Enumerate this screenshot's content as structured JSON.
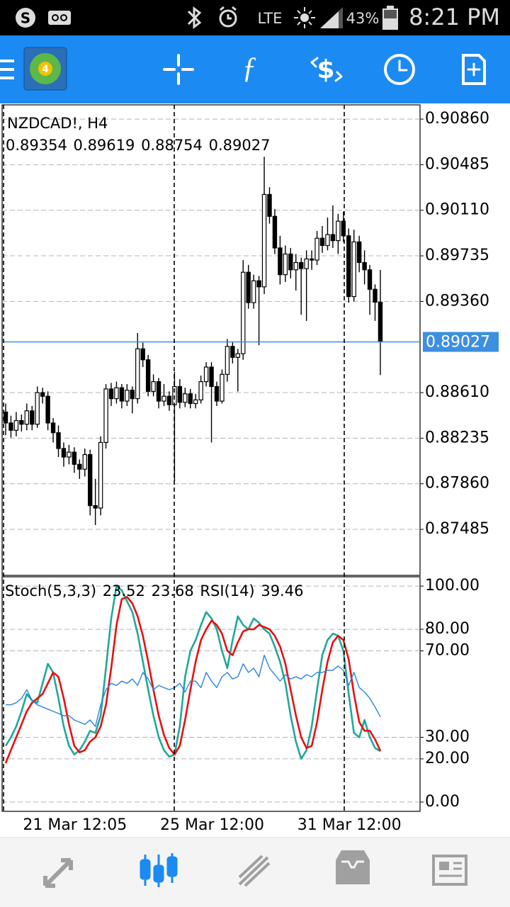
{
  "status_bar": {
    "network": "LTE",
    "battery": "43%",
    "time": "8:21 PM"
  },
  "chart_data": [
    {
      "type": "candlestick",
      "title": "NZDCAD!, H4",
      "color": "#000000",
      "up_color": "#ffffff",
      "candles": [
        [
          0.8845,
          0.8852,
          0.8826,
          0.8836
        ],
        [
          0.8836,
          0.8842,
          0.8824,
          0.883
        ],
        [
          0.883,
          0.8845,
          0.8825,
          0.8838
        ],
        [
          0.8838,
          0.8843,
          0.8829,
          0.8835
        ],
        [
          0.8835,
          0.8852,
          0.883,
          0.8846
        ],
        [
          0.8846,
          0.885,
          0.883,
          0.8835
        ],
        [
          0.8835,
          0.8866,
          0.8832,
          0.8861
        ],
        [
          0.8861,
          0.8865,
          0.8852,
          0.8858
        ],
        [
          0.8858,
          0.8862,
          0.883,
          0.8836
        ],
        [
          0.8836,
          0.884,
          0.882,
          0.8828
        ],
        [
          0.8828,
          0.8834,
          0.8808,
          0.8815
        ],
        [
          0.8815,
          0.882,
          0.88,
          0.8808
        ],
        [
          0.8808,
          0.8818,
          0.8802,
          0.8812
        ],
        [
          0.8812,
          0.8816,
          0.8795,
          0.8802
        ],
        [
          0.8802,
          0.8806,
          0.879,
          0.8798
        ],
        [
          0.8798,
          0.8815,
          0.8792,
          0.881
        ],
        [
          0.881,
          0.8814,
          0.876,
          0.8768
        ],
        [
          0.8768,
          0.879,
          0.8752,
          0.8766
        ],
        [
          0.8766,
          0.8825,
          0.876,
          0.882
        ],
        [
          0.882,
          0.8868,
          0.8815,
          0.8864
        ],
        [
          0.8864,
          0.8869,
          0.885,
          0.8856
        ],
        [
          0.8856,
          0.887,
          0.8852,
          0.8865
        ],
        [
          0.8865,
          0.8868,
          0.8848,
          0.8854
        ],
        [
          0.8854,
          0.8868,
          0.885,
          0.8863
        ],
        [
          0.8863,
          0.8866,
          0.8844,
          0.8856
        ],
        [
          0.8856,
          0.891,
          0.8852,
          0.8897
        ],
        [
          0.8897,
          0.8902,
          0.8882,
          0.8888
        ],
        [
          0.8888,
          0.8892,
          0.8858,
          0.8862
        ],
        [
          0.8862,
          0.8876,
          0.8858,
          0.887
        ],
        [
          0.887,
          0.8873,
          0.8848,
          0.8854
        ],
        [
          0.8854,
          0.8868,
          0.885,
          0.8858
        ],
        [
          0.8858,
          0.8862,
          0.8846,
          0.8851
        ],
        [
          0.8851,
          0.8878,
          0.8788,
          0.8866
        ],
        [
          0.8866,
          0.8872,
          0.8848,
          0.8853
        ],
        [
          0.8853,
          0.8865,
          0.8849,
          0.886
        ],
        [
          0.886,
          0.8864,
          0.8848,
          0.8852
        ],
        [
          0.8852,
          0.886,
          0.8848,
          0.8855
        ],
        [
          0.8855,
          0.8875,
          0.8852,
          0.887
        ],
        [
          0.887,
          0.8886,
          0.8866,
          0.8882
        ],
        [
          0.8882,
          0.8886,
          0.882,
          0.8866
        ],
        [
          0.8866,
          0.887,
          0.885,
          0.8854
        ],
        [
          0.8854,
          0.888,
          0.8852,
          0.8876
        ],
        [
          0.8876,
          0.8905,
          0.887,
          0.8899
        ],
        [
          0.8899,
          0.8903,
          0.8885,
          0.889
        ],
        [
          0.889,
          0.8897,
          0.8862,
          0.8893
        ],
        [
          0.8893,
          0.897,
          0.8888,
          0.896
        ],
        [
          0.896,
          0.8966,
          0.893,
          0.8935
        ],
        [
          0.8935,
          0.8958,
          0.893,
          0.8953
        ],
        [
          0.8953,
          0.8957,
          0.89,
          0.8948
        ],
        [
          0.8948,
          0.9055,
          0.8942,
          0.9024
        ],
        [
          0.9024,
          0.903,
          0.9,
          0.9006
        ],
        [
          0.9006,
          0.9012,
          0.8975,
          0.898
        ],
        [
          0.898,
          0.899,
          0.895,
          0.8958
        ],
        [
          0.8958,
          0.8982,
          0.8952,
          0.8975
        ],
        [
          0.8975,
          0.898,
          0.8955,
          0.8962
        ],
        [
          0.8962,
          0.8975,
          0.8945,
          0.8968
        ],
        [
          0.8968,
          0.8972,
          0.8925,
          0.8963
        ],
        [
          0.8963,
          0.8978,
          0.892,
          0.8971
        ],
        [
          0.8971,
          0.8978,
          0.8962,
          0.897
        ],
        [
          0.897,
          0.8994,
          0.8966,
          0.8988
        ],
        [
          0.8988,
          0.8998,
          0.8976,
          0.8982
        ],
        [
          0.8982,
          0.9005,
          0.8978,
          0.8991
        ],
        [
          0.8991,
          0.9015,
          0.898,
          0.8986
        ],
        [
          0.8986,
          0.9008,
          0.8975,
          0.9002
        ],
        [
          0.9002,
          0.901,
          0.8985,
          0.899
        ],
        [
          0.899,
          0.8996,
          0.8935,
          0.894
        ],
        [
          0.894,
          0.8995,
          0.8936,
          0.8985
        ],
        [
          0.8985,
          0.899,
          0.896,
          0.8968
        ],
        [
          0.8968,
          0.8978,
          0.895,
          0.8962
        ],
        [
          0.8962,
          0.8966,
          0.8925,
          0.8946
        ],
        [
          0.8946,
          0.895,
          0.892,
          0.89354
        ],
        [
          0.89354,
          0.89619,
          0.88754,
          0.89027
        ]
      ],
      "ylim": [
        0.87118,
        0.90977
      ],
      "yticks": [
        {
          "value": 0.9086,
          "label": "0.90860"
        },
        {
          "value": 0.90485,
          "label": "0.90485"
        },
        {
          "value": 0.9011,
          "label": "0.90110"
        },
        {
          "value": 0.89735,
          "label": "0.89735"
        },
        {
          "value": 0.8936,
          "label": "0.89360"
        },
        {
          "value": 0.8861,
          "label": "0.88610"
        },
        {
          "value": 0.88235,
          "label": "0.88235"
        },
        {
          "value": 0.8786,
          "label": "0.87860"
        },
        {
          "value": 0.87485,
          "label": "0.87485"
        }
      ],
      "grid": true,
      "price_line_color": "#3d8fe0"
    },
    {
      "type": "line",
      "categories": [
        null,
        null,
        null,
        "21 Mar 12:05",
        null,
        null,
        null,
        null,
        null,
        null,
        null,
        null,
        null,
        null,
        null,
        null,
        null,
        null,
        null,
        null,
        null,
        null,
        null,
        null,
        null,
        null,
        null,
        null,
        null,
        "25 Mar 12:00",
        null,
        null,
        null,
        null,
        null,
        null,
        null,
        null,
        null,
        null,
        null,
        null,
        null,
        null,
        null,
        null,
        null,
        null,
        null,
        null,
        null,
        null,
        null,
        null,
        null,
        "31 Mar 12:00",
        null,
        null,
        null,
        null,
        null,
        null,
        null,
        null,
        null,
        null,
        null,
        null,
        null,
        null,
        null,
        null
      ],
      "series": [
        {
          "name": "Stoch(5,3,3)",
          "color": "#20a89a",
          "values": [
            26,
            30,
            35,
            42,
            50,
            47,
            46,
            55,
            64,
            60,
            48,
            35,
            26,
            22,
            24,
            28,
            33,
            32,
            40,
            62,
            85,
            100,
            98,
            93,
            88,
            78,
            65,
            52,
            40,
            30,
            24,
            21,
            22,
            35,
            58,
            70,
            75,
            82,
            88,
            85,
            80,
            70,
            62,
            75,
            86,
            82,
            80,
            85,
            83,
            80,
            78,
            72,
            65,
            55,
            40,
            28,
            20,
            24,
            35,
            52,
            68,
            75,
            78,
            77,
            70,
            50,
            32,
            30,
            38,
            30,
            25,
            23.52
          ]
        },
        {
          "color": "#e81010",
          "values": [
            18,
            24,
            30,
            36,
            42,
            46,
            48,
            50,
            55,
            60,
            58,
            48,
            36,
            26,
            23,
            24,
            28,
            30,
            35,
            45,
            62,
            82,
            94,
            95,
            92,
            86,
            77,
            65,
            52,
            40,
            31,
            25,
            22,
            26,
            38,
            52,
            65,
            75,
            80,
            84,
            82,
            78,
            70,
            68,
            74,
            79,
            80,
            80,
            82,
            81,
            80,
            77,
            72,
            64,
            52,
            40,
            30,
            25,
            26,
            37,
            52,
            65,
            74,
            77,
            75,
            66,
            50,
            37,
            33,
            33,
            29,
            23.68
          ]
        },
        {
          "name": "RSI(14)",
          "color": "#2a85e0",
          "values": [
            45,
            45,
            46,
            48,
            52,
            47,
            45,
            44,
            43,
            42,
            41,
            40,
            40,
            38,
            37,
            36,
            38,
            35,
            45,
            52,
            55,
            54,
            56,
            55,
            57,
            54,
            60,
            57,
            52,
            54,
            53,
            52,
            53,
            55,
            51,
            56,
            56,
            53,
            60,
            56,
            53,
            58,
            60,
            57,
            58,
            64,
            60,
            62,
            58,
            68,
            62,
            59,
            56,
            59,
            57,
            58,
            57,
            59,
            58,
            60,
            60,
            61,
            61,
            63,
            61,
            54,
            60,
            53,
            51,
            48,
            44,
            39.46
          ]
        }
      ],
      "ylim": [
        -4.3,
        104.3
      ],
      "yticks": [
        {
          "value": 100,
          "label": "100.00"
        },
        {
          "value": 80,
          "label": "80.00"
        },
        {
          "value": 70,
          "label": "70.00"
        },
        {
          "value": 30,
          "label": "30.00"
        },
        {
          "value": 20,
          "label": "20.00"
        },
        {
          "value": 0,
          "label": "0.00"
        }
      ],
      "grid": true
    }
  ]
}
